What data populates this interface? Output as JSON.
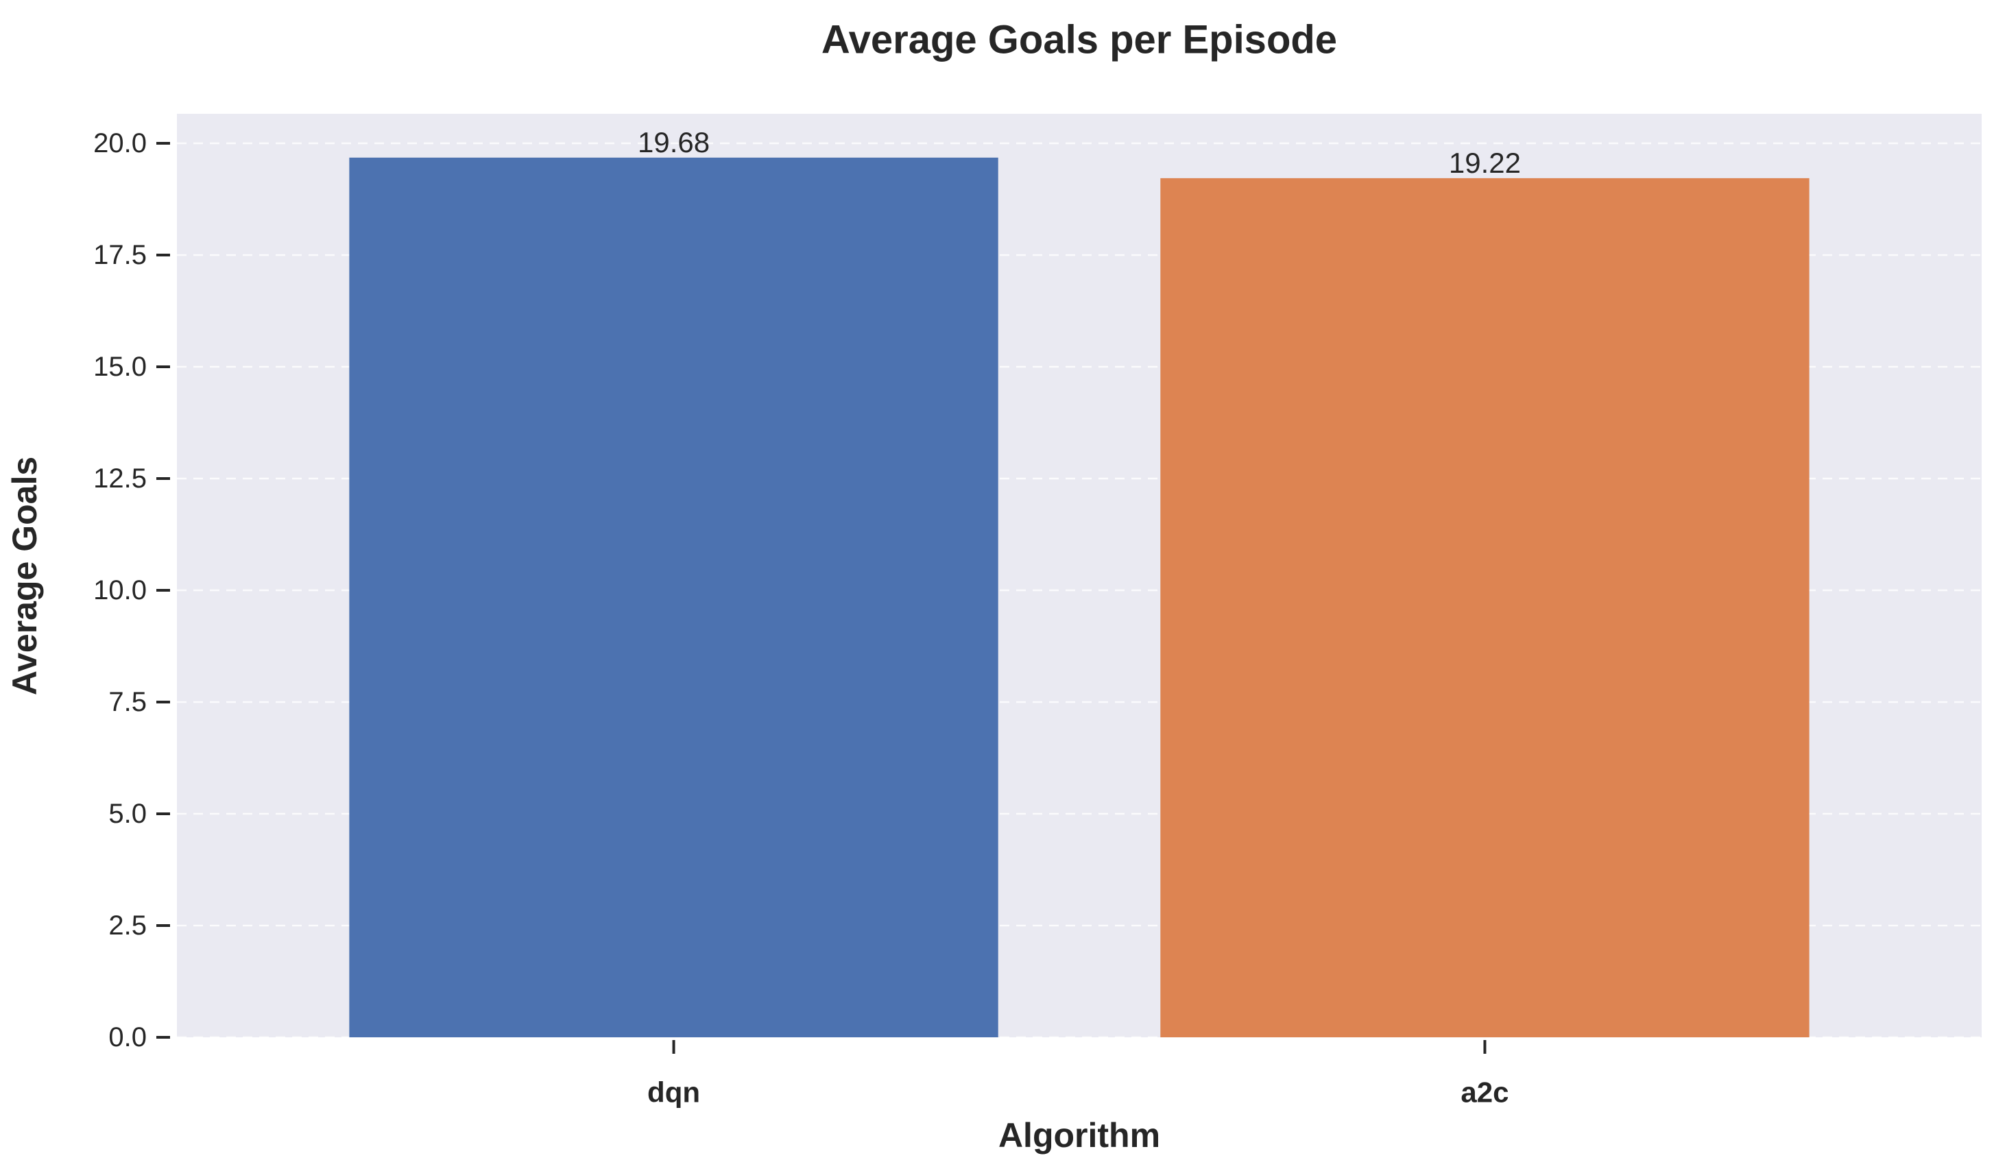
{
  "chart_data": {
    "type": "bar",
    "title": "Average Goals per Episode",
    "xlabel": "Algorithm",
    "ylabel": "Average Goals",
    "categories": [
      "dqn",
      "a2c"
    ],
    "values": [
      19.68,
      19.22
    ],
    "value_labels": [
      "19.68",
      "19.22"
    ],
    "bar_colors": [
      "#4c72b0",
      "#dd8452"
    ],
    "ylim": [
      0,
      20.66
    ],
    "yticks": [
      0.0,
      2.5,
      5.0,
      7.5,
      10.0,
      12.5,
      15.0,
      17.5,
      20.0
    ],
    "ytick_labels": [
      "0.0",
      "2.5",
      "5.0",
      "7.5",
      "10.0",
      "12.5",
      "15.0",
      "17.5",
      "20.0"
    ],
    "grid": true,
    "grid_style": "dashed",
    "plot_background": "#eaeaf2"
  }
}
